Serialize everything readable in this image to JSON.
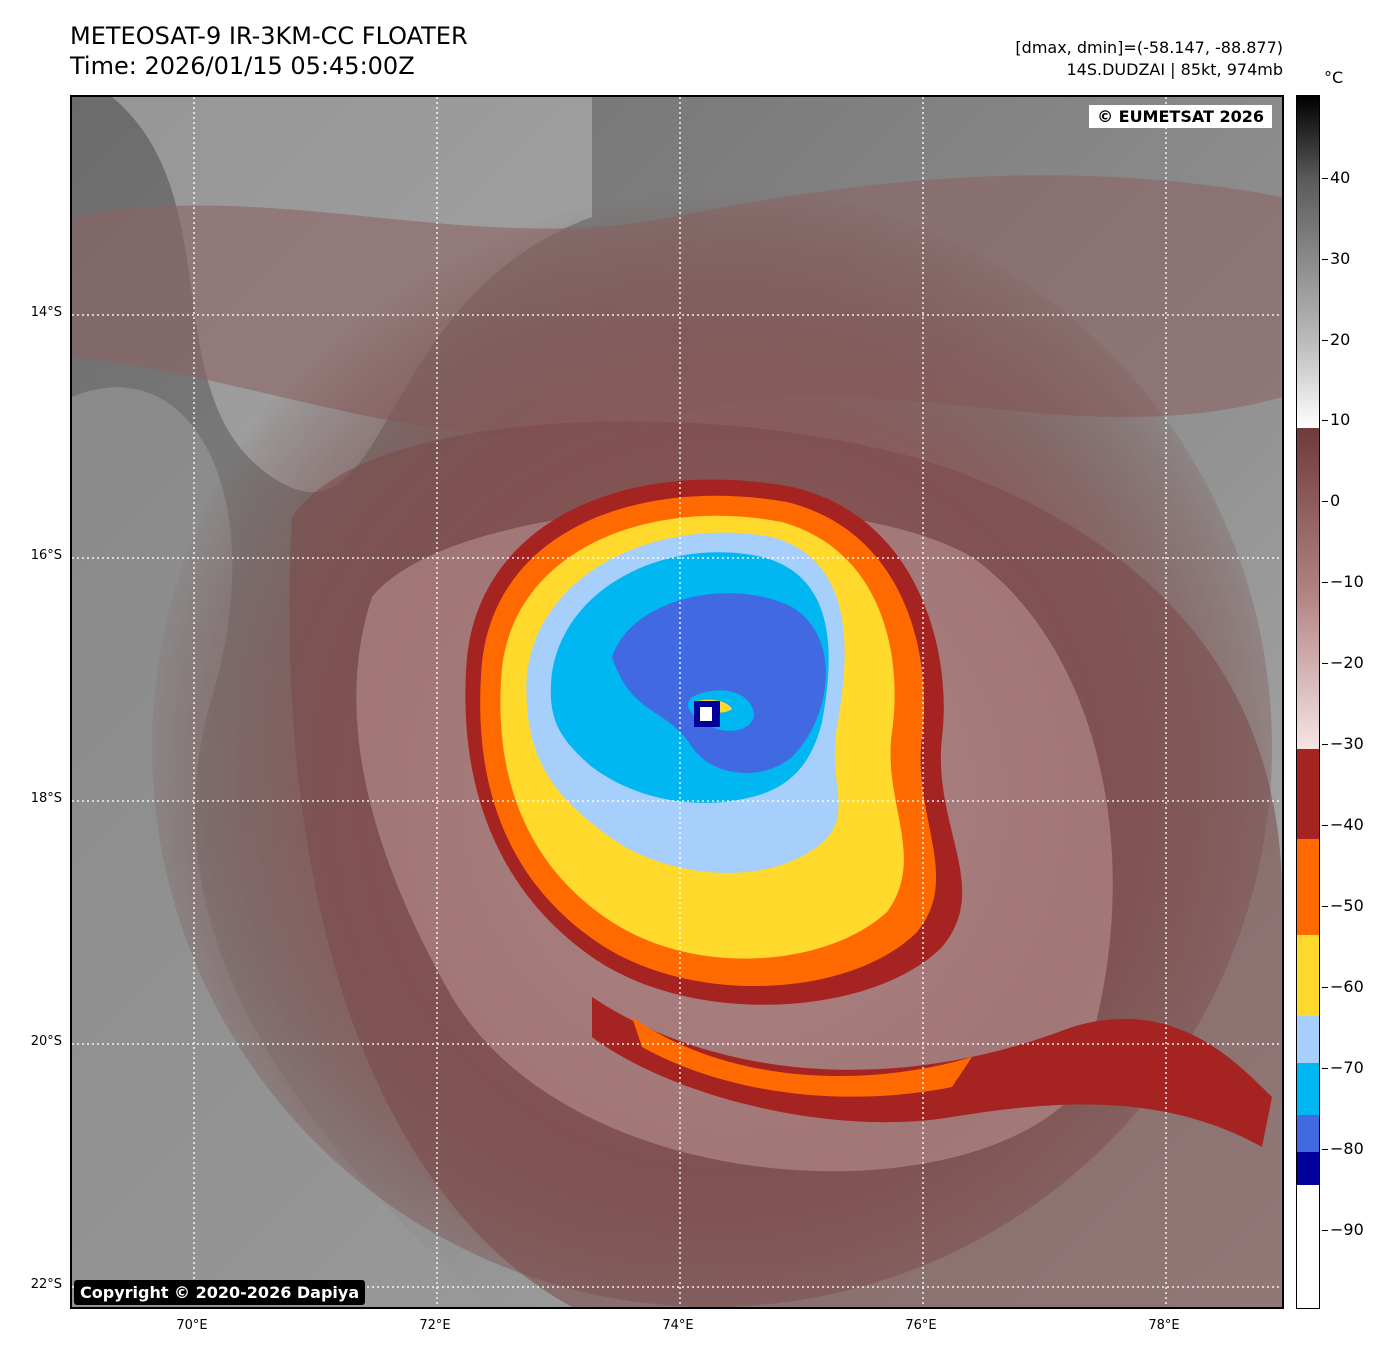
{
  "header": {
    "title_line1": "METEOSAT-9 IR-3KM-CC FLOATER",
    "title_line2": "Time: 2026/01/15 05:45:00Z",
    "range_text": "[dmax, dmin]=(-58.147, -88.877)",
    "storm_text": "14S.DUDZAI | 85kt, 974mb"
  },
  "credits": {
    "eumetsat": "© EUMETSAT 2026",
    "dapiya": "Copyright © 2020-2026 Dapiya"
  },
  "axes": {
    "lat_labels": [
      "14°S",
      "16°S",
      "18°S",
      "20°S",
      "22°S"
    ],
    "lon_labels": [
      "70°E",
      "72°E",
      "74°E",
      "76°E",
      "78°E"
    ]
  },
  "colorbar": {
    "unit": "°C",
    "tick_labels": [
      "40",
      "30",
      "20",
      "10",
      "0",
      "−10",
      "−20",
      "−30",
      "−40",
      "−50",
      "−60",
      "−70",
      "−80",
      "−90"
    ],
    "colors": {
      "gray_warm": "#000000",
      "gray_cold": "#ffffff",
      "brown": "#6e3b3b",
      "pink": "#f6e4e4",
      "dark_red": "#a52422",
      "orange": "#ff6a00",
      "yellow": "#ffd92c",
      "light_blue": "#a6cffb",
      "cyan": "#00b7f1",
      "royal_blue": "#4169e1",
      "navy": "#00009a",
      "white": "#ffffff"
    }
  }
}
